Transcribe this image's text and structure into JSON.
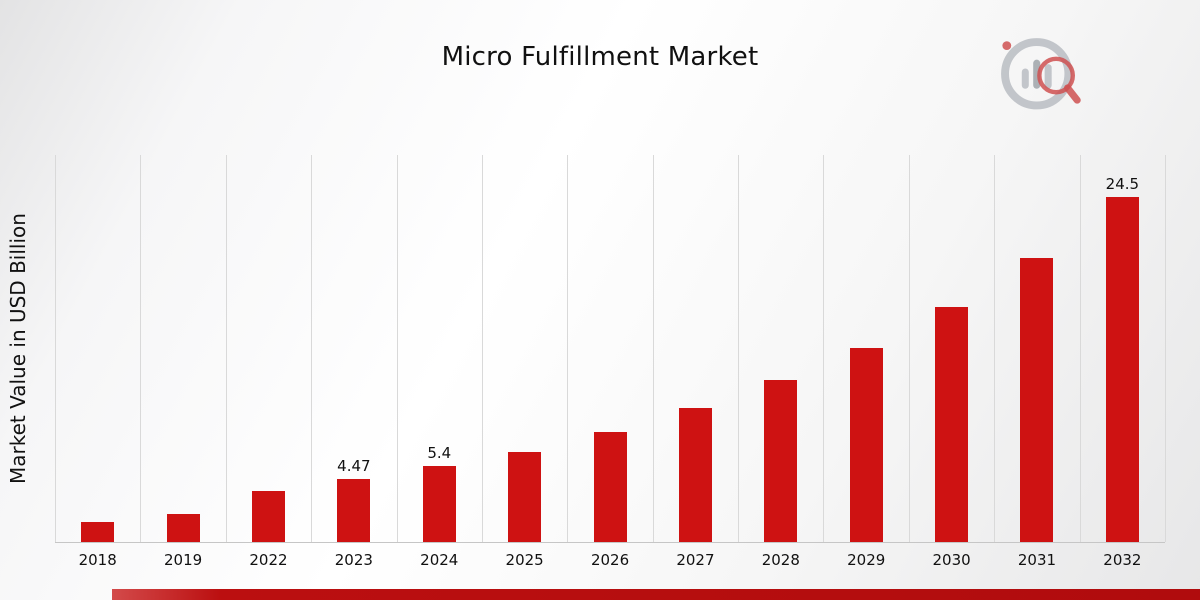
{
  "title": "Micro Fulfillment Market",
  "colors": {
    "bar": "#ce1212",
    "grid": "#d9d9d9",
    "axis": "#c6c6c6",
    "bottom_strip": "#b00c0d",
    "logo_gray": "#b6bac0",
    "logo_red": "#c62828"
  },
  "chart_data": {
    "type": "bar",
    "title": "Micro Fulfillment Market",
    "xlabel": "",
    "ylabel": "Market Value in USD Billion",
    "ylim": [
      0,
      27.5
    ],
    "grid": "vertical",
    "legend": "none",
    "categories": [
      "2018",
      "2019",
      "2022",
      "2023",
      "2024",
      "2025",
      "2026",
      "2027",
      "2028",
      "2029",
      "2030",
      "2031",
      "2032"
    ],
    "values": [
      1.4,
      2.0,
      3.6,
      4.47,
      5.4,
      6.4,
      7.8,
      9.5,
      11.5,
      13.8,
      16.7,
      20.2,
      24.5
    ],
    "data_labels": [
      "",
      "",
      "",
      "4.47",
      "5.4",
      "",
      "",
      "",
      "",
      "",
      "",
      "",
      "24.5"
    ]
  },
  "logo": {
    "name": "market-research-chart-magnifier-logo"
  }
}
